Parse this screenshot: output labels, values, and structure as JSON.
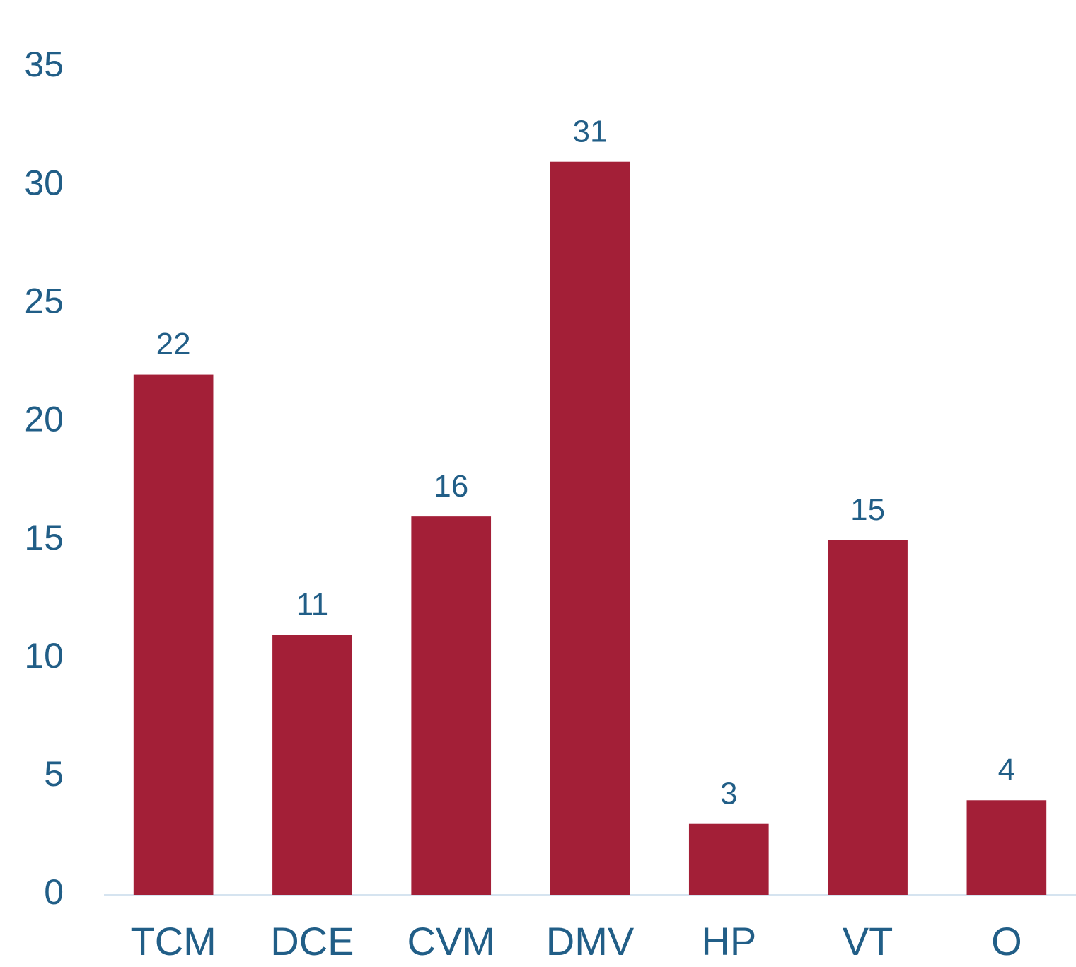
{
  "chart_data": {
    "type": "bar",
    "categories": [
      "TCM",
      "DCE",
      "CVM",
      "DMV",
      "HP",
      "VT",
      "O"
    ],
    "values": [
      22,
      11,
      16,
      31,
      3,
      15,
      4
    ],
    "color": "#a31f37",
    "ylim": [
      0,
      35
    ],
    "yticks": [
      0,
      5,
      10,
      15,
      20,
      25,
      30,
      35
    ],
    "grid": false
  }
}
